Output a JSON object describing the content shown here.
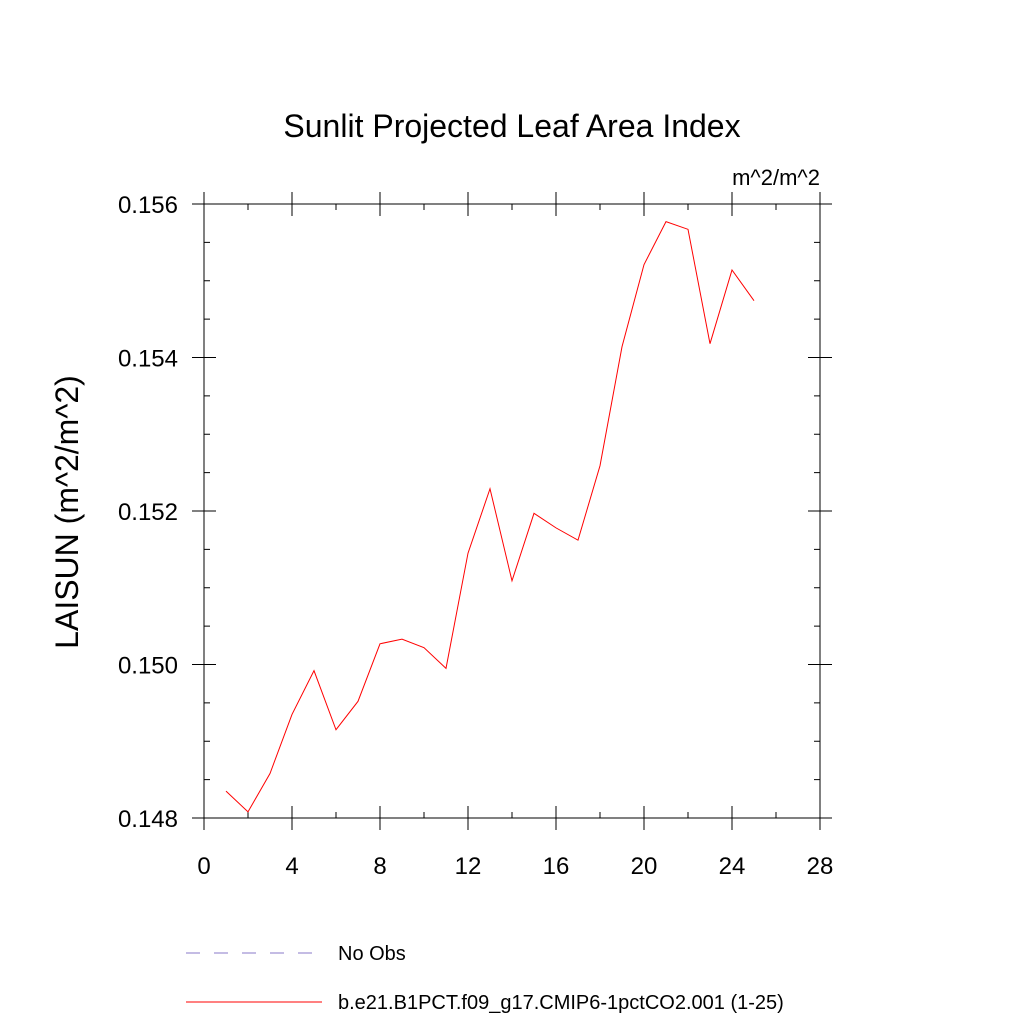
{
  "chart_data": {
    "type": "line",
    "title": "Sunlit Projected Leaf Area Index",
    "units_label": "m^2/m^2",
    "ylabel": "LAISUN  (m^2/m^2)",
    "xlabel": "",
    "xlim": [
      0,
      28
    ],
    "ylim": [
      0.148,
      0.156
    ],
    "x_major_ticks": [
      0,
      4,
      8,
      12,
      16,
      20,
      24,
      28
    ],
    "x_tick_labels": [
      "0",
      "4",
      "8",
      "12",
      "16",
      "20",
      "24",
      "28"
    ],
    "y_major_ticks": [
      0.148,
      0.15,
      0.152,
      0.154,
      0.156
    ],
    "y_tick_labels": [
      "0.148",
      "0.150",
      "0.152",
      "0.154",
      "0.156"
    ],
    "x_minor_step": 2,
    "y_minor_step": 0.0005,
    "grid": false,
    "legend_position": "bottom",
    "series": [
      {
        "name": "b.e21.B1PCT.f09_g17.CMIP6-1pctCO2.001 (1-25)",
        "color": "#ff0000",
        "dash": "solid",
        "x": [
          1,
          2,
          3,
          4,
          5,
          6,
          7,
          8,
          9,
          10,
          11,
          12,
          13,
          14,
          15,
          16,
          17,
          18,
          19,
          20,
          21,
          22,
          23,
          24,
          25
        ],
        "values": [
          0.14835,
          0.14808,
          0.14858,
          0.14935,
          0.14992,
          0.14915,
          0.14952,
          0.15027,
          0.15033,
          0.15022,
          0.14995,
          0.15145,
          0.15229,
          0.15109,
          0.15197,
          0.15178,
          0.15162,
          0.15259,
          0.15414,
          0.15521,
          0.15577,
          0.15567,
          0.15418,
          0.15514,
          0.15474
        ]
      }
    ],
    "legend": [
      {
        "label": "No Obs",
        "color": "#8878c8",
        "dash": "dashed"
      },
      {
        "label": "b.e21.B1PCT.f09_g17.CMIP6-1pctCO2.001 (1-25)",
        "color": "#ff0000",
        "dash": "solid"
      }
    ]
  }
}
